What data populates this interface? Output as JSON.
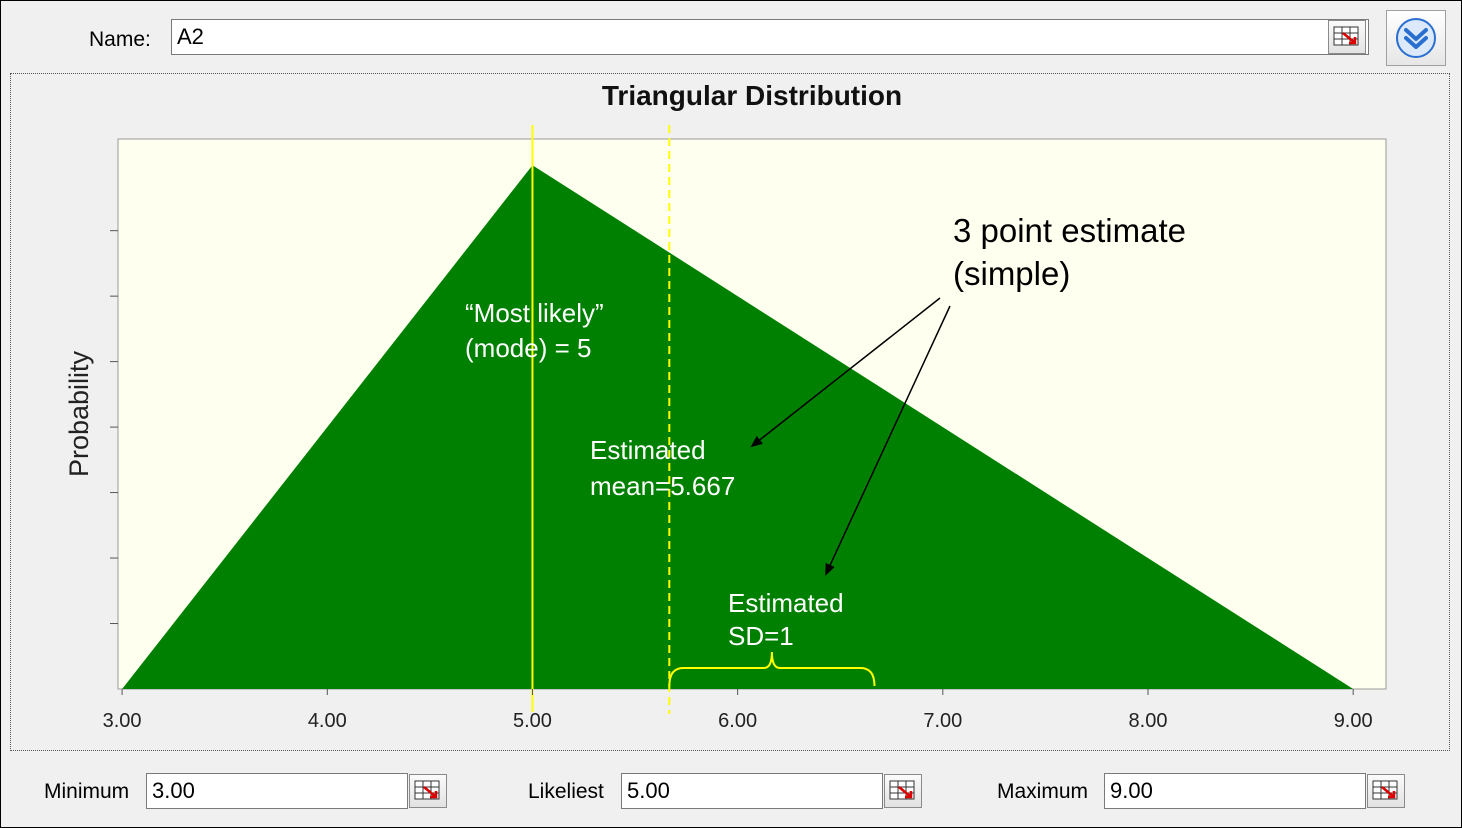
{
  "name_field": {
    "label": "Name:",
    "mnemonic": "a",
    "value": "A2"
  },
  "chart_data": {
    "type": "area",
    "title": "Triangular Distribution",
    "ylabel": "Probability",
    "xlabel": "",
    "x": [
      3.0,
      5.0,
      9.0
    ],
    "y": [
      0,
      1,
      0
    ],
    "xlim": [
      2.98,
      9.16
    ],
    "ylim": [
      0,
      1.05
    ],
    "x_ticks": [
      "3.00",
      "4.00",
      "5.00",
      "6.00",
      "7.00",
      "8.00",
      "9.00"
    ],
    "fill_color": "#008000",
    "plot_background": "#fffff0",
    "mode_line": 5.0,
    "mean_line": 5.667,
    "sd": 1
  },
  "annotations": {
    "mode_text": [
      "“Most likely”",
      "(mode) = 5"
    ],
    "mean_text": [
      "Estimated",
      "mean=5.667"
    ],
    "sd_text": [
      "Estimated",
      "SD=1"
    ],
    "estimate_text": [
      "3 point estimate",
      "(simple)"
    ]
  },
  "params": {
    "minimum": {
      "label": "Minimum",
      "mnemonic": "i",
      "value": "3.00"
    },
    "likeliest": {
      "label": "Likeliest",
      "mnemonic": "L",
      "value": "5.00"
    },
    "maximum": {
      "label": "Maximum",
      "mnemonic": "x",
      "value": "9.00"
    }
  },
  "icons": {
    "field_button": "cell-reference-icon",
    "expand": "chevron-double-down-icon",
    "expand_color": "#2a6fd0"
  }
}
